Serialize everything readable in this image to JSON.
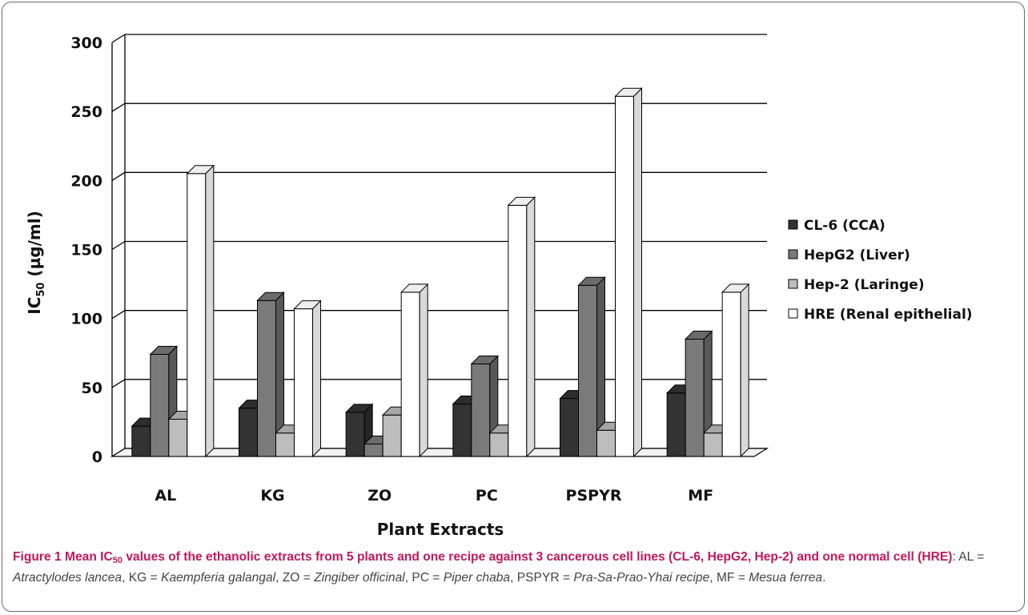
{
  "chart_data": {
    "type": "bar",
    "categories": [
      "AL",
      "KG",
      "ZO",
      "PC",
      "PSPYR",
      "MF"
    ],
    "series": [
      {
        "name": "CL-6 (CCA)",
        "color": "#333333",
        "values": [
          22,
          35,
          32,
          38,
          42,
          46
        ]
      },
      {
        "name": "HepG2 (Liver)",
        "color": "#7a7a7a",
        "values": [
          74,
          113,
          9,
          67,
          124,
          85
        ]
      },
      {
        "name": "Hep-2 (Laringe)",
        "color": "#bdbdbd",
        "values": [
          27,
          17,
          30,
          17,
          19,
          17
        ]
      },
      {
        "name": "HRE (Renal epithelial)",
        "color": "#ffffff",
        "values": [
          205,
          107,
          119,
          182,
          261,
          119
        ]
      }
    ],
    "ylabel_main": "IC",
    "ylabel_sub": "50",
    "ylabel_rest": " (µg/ml)",
    "xlabel": "Plant Extracts",
    "ylim": [
      0,
      300
    ],
    "yticks": [
      0,
      50,
      100,
      150,
      200,
      250,
      300
    ],
    "grid": true,
    "chart_style": "3d-clustered-column",
    "legend_position": "right"
  },
  "caption": {
    "label": "Figure 1",
    "title_pre": " Mean IC",
    "title_sub": "50",
    "title_post": " values of the ethanolic extracts from 5 plants and one recipe against 3 cancerous cell lines (CL-6, HepG2, Hep-2) and one normal cell (HRE)",
    "colon": ": AL = ",
    "al": "Atractylodes lancea",
    "sep1": ", KG = ",
    "kg": "Kaempferia galangal",
    "sep2": ", ZO = ",
    "zo": "Zingiber officinal",
    "sep3": ", PC = ",
    "pc": "Piper chaba",
    "sep4": ", PSPYR = ",
    "pspyr": "Pra-Sa-Prao-Yhai recipe",
    "sep5": ", MF = ",
    "mf": "Mesua ferrea",
    "end": "."
  }
}
